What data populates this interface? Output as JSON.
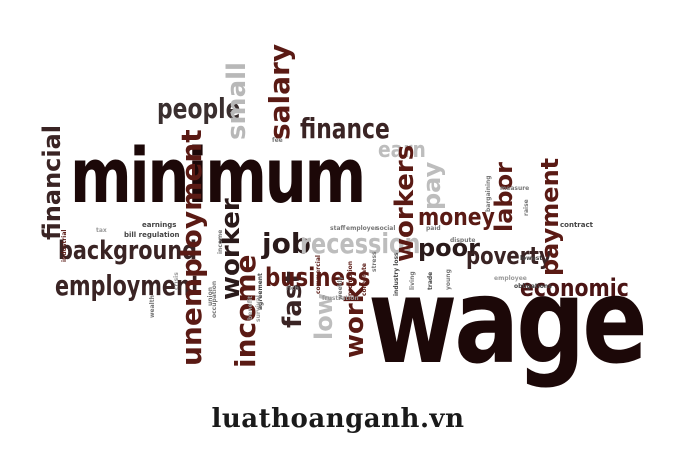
{
  "cloud": {
    "words": {
      "minimum": "minimum",
      "wage": "wage",
      "people": "people",
      "small": "small",
      "salary": "salary",
      "finance": "finance",
      "earn": "earn",
      "financial": "financial",
      "background": "background",
      "employment": "employment",
      "unemployment": "unemployment",
      "worker": "worker",
      "income": "income",
      "job": "job",
      "fast": "fast",
      "business": "business",
      "recession": "recession",
      "low": "low",
      "work": "work",
      "workers": "workers",
      "pay": "pay",
      "money": "money",
      "poor": "poor",
      "labor": "labor",
      "poverty": "poverty",
      "payment": "payment",
      "economic": "economic",
      "earnings": "earnings",
      "bill_regulation": "bill regulation",
      "industrial": "industrial",
      "agreement": "agreement",
      "union": "union",
      "occupation": "occupation",
      "benefit": "benefit",
      "survival": "survival",
      "wealth": "wealth",
      "crisis": "crisis",
      "staff": "staff",
      "employer": "employer",
      "social": "social",
      "commercial": "commercial",
      "frustration": "frustration",
      "weekly": "weekly",
      "promotion": "promotion",
      "corporate": "corporate",
      "stress": "stress",
      "industry_loss": "industry loss",
      "living": "living",
      "paid": "paid",
      "trade": "trade",
      "young": "young",
      "dispute": "dispute",
      "measure": "measure",
      "bargaining": "bargaining",
      "raise": "raise",
      "contract": "contract",
      "lowest": "lowest",
      "employee": "employee",
      "obligations": "obligations",
      "rich": "rich",
      "tax": "tax",
      "fee": "fee",
      "income_small": "income"
    },
    "colors": {
      "dark": "#2a0a0a",
      "maroon": "#5a1414",
      "brown": "#3d1a12",
      "gray": "#9a9a9a",
      "light": "#c8c8c8"
    }
  },
  "footer": {
    "site": "luathoanganh.vn"
  }
}
